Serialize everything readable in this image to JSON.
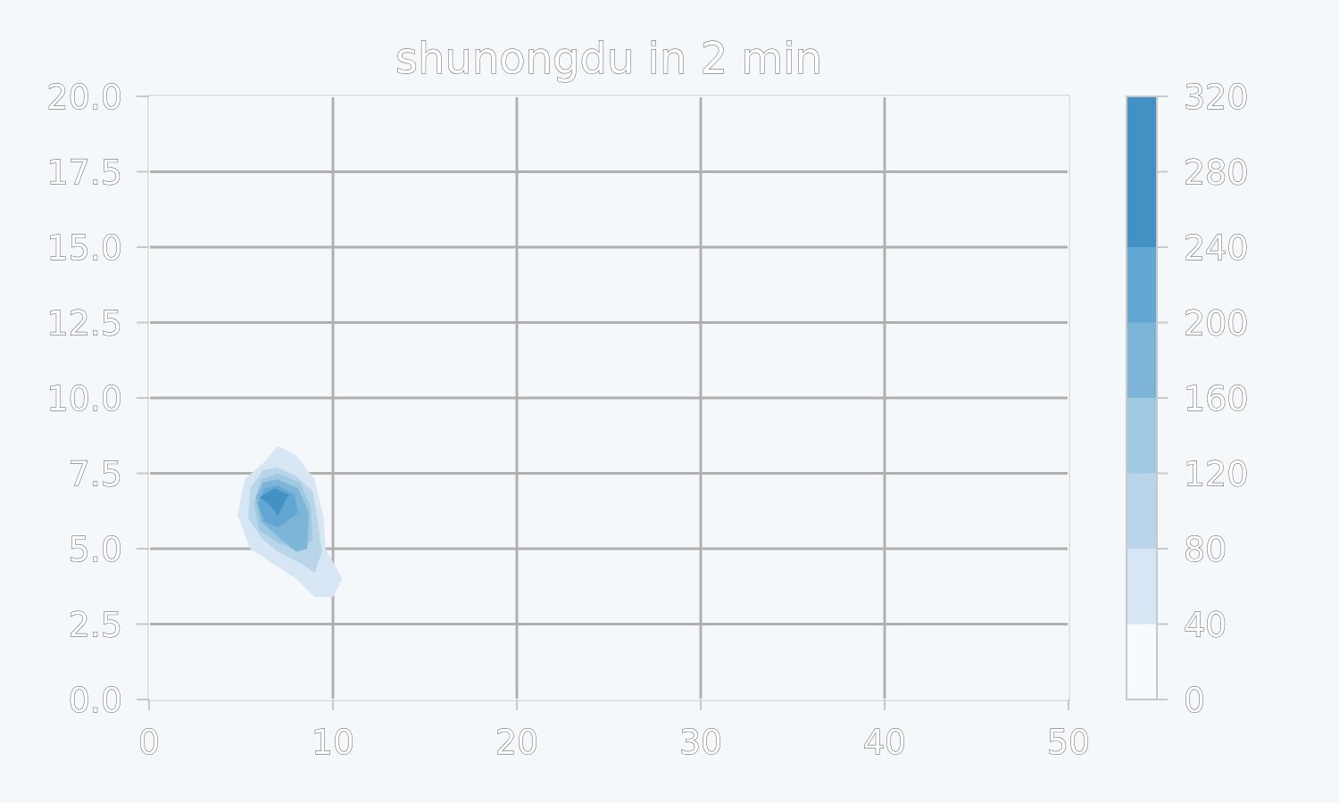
{
  "chart_data": {
    "type": "contour",
    "title": "shunongdu in 2 min",
    "xlabel": "",
    "ylabel": "",
    "xlim": [
      0,
      50
    ],
    "ylim": [
      0,
      20
    ],
    "x_ticks": [
      "0",
      "10",
      "20",
      "30",
      "40",
      "50"
    ],
    "y_ticks": [
      "0.0",
      "2.5",
      "5.0",
      "7.5",
      "10.0",
      "12.5",
      "15.0",
      "17.5",
      "20.0"
    ],
    "x_tick_values": [
      0,
      10,
      20,
      30,
      40,
      50
    ],
    "y_tick_values": [
      0,
      2.5,
      5,
      7.5,
      10,
      12.5,
      15,
      17.5,
      20
    ],
    "grid": true,
    "colorbar": {
      "levels": [
        0,
        40,
        80,
        120,
        160,
        200,
        240,
        280,
        320
      ],
      "labels": [
        "0",
        "40",
        "80",
        "120",
        "160",
        "200",
        "240",
        "280",
        "320"
      ],
      "colors": [
        "#f7fbff",
        "#d6e6f4",
        "#b8d5ea",
        "#9fc9e0",
        "#7db5d8",
        "#62a6d3",
        "#4390c5"
      ]
    },
    "contours": [
      {
        "level": 40,
        "color": "#d6e6f4",
        "points": [
          [
            7,
            8.4
          ],
          [
            8,
            8.1
          ],
          [
            9,
            7.3
          ],
          [
            9.5,
            6.0
          ],
          [
            9.6,
            5.0
          ],
          [
            10.5,
            4.0
          ],
          [
            10,
            3.4
          ],
          [
            9,
            3.4
          ],
          [
            8,
            4.0
          ],
          [
            7,
            4.4
          ],
          [
            5.5,
            5.0
          ],
          [
            4.8,
            6.1
          ],
          [
            5.2,
            7.3
          ],
          [
            6.3,
            7.9
          ]
        ]
      },
      {
        "level": 80,
        "color": "#b8d5ea",
        "points": [
          [
            7,
            7.7
          ],
          [
            8,
            7.4
          ],
          [
            8.9,
            6.9
          ],
          [
            9.2,
            5.8
          ],
          [
            9.4,
            4.9
          ],
          [
            9,
            4.2
          ],
          [
            8.3,
            4.5
          ],
          [
            7,
            4.9
          ],
          [
            6.2,
            5.3
          ],
          [
            5.4,
            6.0
          ],
          [
            5.5,
            7.0
          ],
          [
            6.2,
            7.6
          ]
        ]
      },
      {
        "level": 120,
        "color": "#9fc9e0",
        "points": [
          [
            7,
            7.5
          ],
          [
            8.2,
            7.2
          ],
          [
            8.8,
            6.4
          ],
          [
            8.9,
            5.3
          ],
          [
            8.2,
            4.9
          ],
          [
            7,
            5.2
          ],
          [
            6,
            5.6
          ],
          [
            5.7,
            6.5
          ],
          [
            6.1,
            7.3
          ]
        ]
      },
      {
        "level": 160,
        "color": "#7db5d8",
        "points": [
          [
            7,
            7.3
          ],
          [
            8.1,
            7.0
          ],
          [
            8.7,
            6.2
          ],
          [
            8.6,
            5.0
          ],
          [
            8,
            4.9
          ],
          [
            7,
            5.4
          ],
          [
            6.1,
            5.9
          ],
          [
            5.8,
            6.7
          ],
          [
            6.2,
            7.2
          ]
        ]
      },
      {
        "level": 200,
        "color": "#62a6d3",
        "points": [
          [
            7,
            7.1
          ],
          [
            7.9,
            6.8
          ],
          [
            8.1,
            6.2
          ],
          [
            7.5,
            5.9
          ],
          [
            7,
            5.7
          ],
          [
            6.3,
            5.9
          ],
          [
            5.9,
            6.5
          ],
          [
            6.3,
            7.0
          ]
        ]
      },
      {
        "level": 240,
        "color": "#4390c5",
        "points": [
          [
            6.8,
            7.0
          ],
          [
            7.6,
            6.8
          ],
          [
            7.0,
            6.1
          ],
          [
            6.5,
            6.5
          ],
          [
            6.0,
            6.7
          ]
        ]
      }
    ]
  }
}
